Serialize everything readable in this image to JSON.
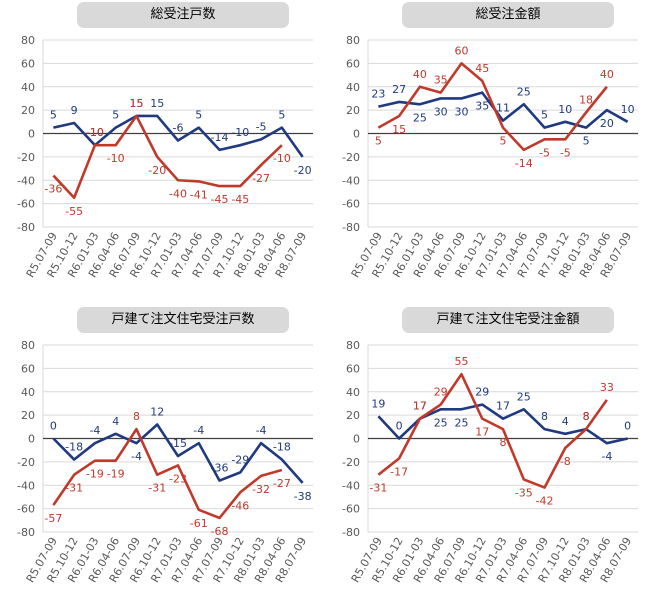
{
  "colors": {
    "series1": "#203a80",
    "series2": "#c0392b",
    "grid": "#d9d9d9",
    "axis": "#404040",
    "tick": "#595959"
  },
  "chart_data": [
    {
      "type": "line",
      "title": "総受注戸数",
      "categories": [
        "R5.07-09",
        "R5.10-12",
        "R6.01-03",
        "R6.04-06",
        "R6.07-09",
        "R6.10-12",
        "R7.01-03",
        "R7.04-06",
        "R7.07-09",
        "R7.10-12",
        "R8.01-03",
        "R8.04-06",
        "R8.07-09"
      ],
      "ylim": [
        -80,
        80
      ],
      "yticks": [
        -80,
        -60,
        -40,
        -20,
        0,
        20,
        40,
        60,
        80
      ],
      "grid": true,
      "series": [
        {
          "values": [
            5,
            9,
            -10,
            5,
            15,
            15,
            -6,
            5,
            -14,
            -10,
            -5,
            5,
            -20
          ]
        },
        {
          "values": [
            -36,
            -55,
            -10,
            -10,
            15,
            -20,
            -40,
            -41,
            -45,
            -45,
            -27,
            -10,
            null
          ]
        }
      ]
    },
    {
      "type": "line",
      "title": "総受注金額",
      "categories": [
        "R5.07-09",
        "R5.10-12",
        "R6.01-03",
        "R6.04-06",
        "R6.07-09",
        "R6.10-12",
        "R7.01-03",
        "R7.04-06",
        "R7.07-09",
        "R7.10-12",
        "R8.01-03",
        "R8.04-06",
        "R8.07-09"
      ],
      "ylim": [
        -80,
        80
      ],
      "yticks": [
        -80,
        -60,
        -40,
        -20,
        0,
        20,
        40,
        60,
        80
      ],
      "grid": true,
      "series": [
        {
          "values": [
            23,
            27,
            25,
            30,
            30,
            35,
            11,
            25,
            5,
            10,
            5,
            20,
            10
          ]
        },
        {
          "values": [
            5,
            15,
            40,
            35,
            60,
            45,
            5,
            -14,
            -5,
            -5,
            18,
            40,
            null
          ]
        }
      ]
    },
    {
      "type": "line",
      "title": "戸建て注文住宅受注戸数",
      "categories": [
        "R5.07-09",
        "R5.10-12",
        "R6.01-03",
        "R6.04-06",
        "R6.07-09",
        "R6.10-12",
        "R7.01-03",
        "R7.04-06",
        "R7.07-09",
        "R7.10-12",
        "R8.01-03",
        "R8.04-06",
        "R8.07-09"
      ],
      "ylim": [
        -80,
        80
      ],
      "yticks": [
        -80,
        -60,
        -40,
        -20,
        0,
        20,
        40,
        60,
        80
      ],
      "grid": true,
      "series": [
        {
          "values": [
            0,
            -18,
            -4,
            4,
            -4,
            12,
            -15,
            -4,
            -36,
            -29,
            -4,
            -18,
            -38
          ]
        },
        {
          "values": [
            -57,
            -31,
            -19,
            -19,
            8,
            -31,
            -23,
            -61,
            -68,
            -46,
            -32,
            -27,
            null
          ]
        }
      ]
    },
    {
      "type": "line",
      "title": "戸建て注文住宅受注金額",
      "categories": [
        "R5.07-09",
        "R5.10-12",
        "R6.01-03",
        "R6.04-06",
        "R6.07-09",
        "R6.10-12",
        "R7.01-03",
        "R7.04-06",
        "R7.07-09",
        "R7.10-12",
        "R8.01-03",
        "R8.04-06",
        "R8.07-09"
      ],
      "ylim": [
        -80,
        80
      ],
      "yticks": [
        -80,
        -60,
        -40,
        -20,
        0,
        20,
        40,
        60,
        80
      ],
      "grid": true,
      "series": [
        {
          "values": [
            19,
            0,
            17,
            25,
            25,
            29,
            17,
            25,
            8,
            4,
            8,
            -4,
            0
          ]
        },
        {
          "values": [
            -31,
            -17,
            17,
            29,
            55,
            17,
            8,
            -35,
            -42,
            -8,
            8,
            33,
            null
          ]
        }
      ]
    }
  ]
}
